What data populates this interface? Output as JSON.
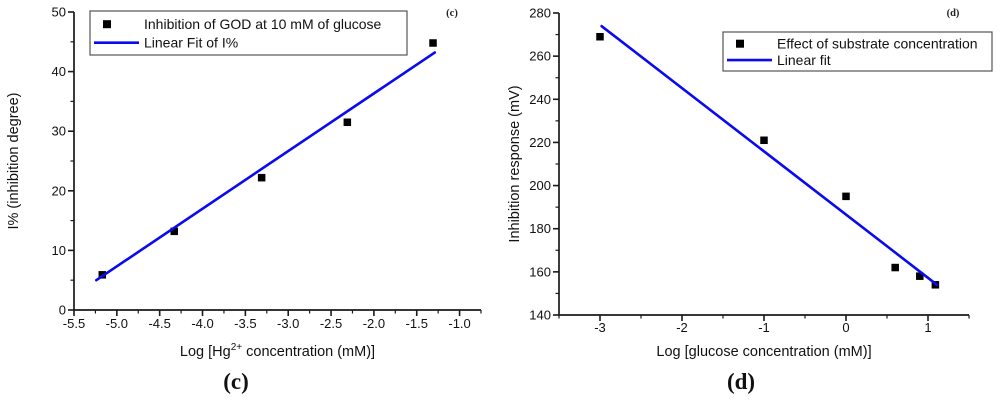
{
  "page": {
    "background": "#ffffff"
  },
  "colors": {
    "fit_line": "#0a0af0",
    "marker": "#000000",
    "axis": "#1a1a1a",
    "legend_border": "#555555",
    "text": "#111111"
  },
  "panels": [
    {
      "corner_label": "(c)",
      "caption": "(c)"
    },
    {
      "corner_label": "(d)",
      "caption": "(d)"
    }
  ],
  "chart_data": [
    {
      "type": "scatter",
      "panel": "c",
      "title": "",
      "xlabel_pre": "Log [Hg",
      "xlabel_sup": "2+",
      "xlabel_post": " concentration (mM)]",
      "ylabel": "I% (inhibition degree)",
      "xlim": [
        -5.5,
        -0.75
      ],
      "ylim": [
        0,
        50
      ],
      "x_major_ticks": [
        -5.5,
        -5.0,
        -4.5,
        -4.0,
        -3.5,
        -3.0,
        -2.5,
        -2.0,
        -1.5,
        -1.0
      ],
      "x_tick_labels": [
        "-5.5",
        "-5.0",
        "-4.5",
        "-4.0",
        "-3.5",
        "-3.0",
        "-2.5",
        "-2.0",
        "-1.5",
        "-1.0"
      ],
      "x_minor_step": 0.25,
      "y_major_ticks": [
        0,
        10,
        20,
        30,
        40,
        50
      ],
      "y_tick_labels": [
        "0",
        "10",
        "20",
        "30",
        "40",
        "50"
      ],
      "y_minor_step": 5,
      "grid": false,
      "legend_position": "top-left-inside",
      "series": [
        {
          "name": "Inhibition of GOD at 10 mM of glucose",
          "kind": "scatter",
          "marker": "square",
          "points": [
            [
              -5.17,
              5.9
            ],
            [
              -4.33,
              13.2
            ],
            [
              -3.31,
              22.2
            ],
            [
              -2.31,
              31.5
            ],
            [
              -1.31,
              44.8
            ]
          ]
        },
        {
          "name": "Linear Fit of I%",
          "kind": "line",
          "points": [
            [
              -5.24,
              5.0
            ],
            [
              -1.29,
              43.2
            ]
          ]
        }
      ]
    },
    {
      "type": "scatter",
      "panel": "d",
      "title": "",
      "xlabel_pre": "Log [glucose concentration (mM)]",
      "xlabel_sup": "",
      "xlabel_post": "",
      "ylabel": "Inhibition response (mV)",
      "xlim": [
        -3.5,
        1.5
      ],
      "ylim": [
        140,
        280
      ],
      "x_major_ticks": [
        -3,
        -2,
        -1,
        0,
        1
      ],
      "x_tick_labels": [
        "-3",
        "-2",
        "-1",
        "0",
        "1"
      ],
      "x_minor_step": 0.5,
      "y_major_ticks": [
        140,
        160,
        180,
        200,
        220,
        240,
        260,
        280
      ],
      "y_tick_labels": [
        "140",
        "160",
        "180",
        "200",
        "220",
        "240",
        "260",
        "280"
      ],
      "y_minor_step": 10,
      "grid": false,
      "legend_position": "top-right-inside",
      "series": [
        {
          "name": "Effect of substrate concentration",
          "kind": "scatter",
          "marker": "square",
          "points": [
            [
              -3.0,
              269
            ],
            [
              -1.0,
              221
            ],
            [
              0.0,
              195
            ],
            [
              0.6,
              162
            ],
            [
              0.9,
              158
            ],
            [
              1.09,
              154
            ]
          ]
        },
        {
          "name": "Linear fit",
          "kind": "line",
          "points": [
            [
              -2.98,
              273.9
            ],
            [
              1.11,
              154.0
            ]
          ]
        }
      ]
    }
  ]
}
